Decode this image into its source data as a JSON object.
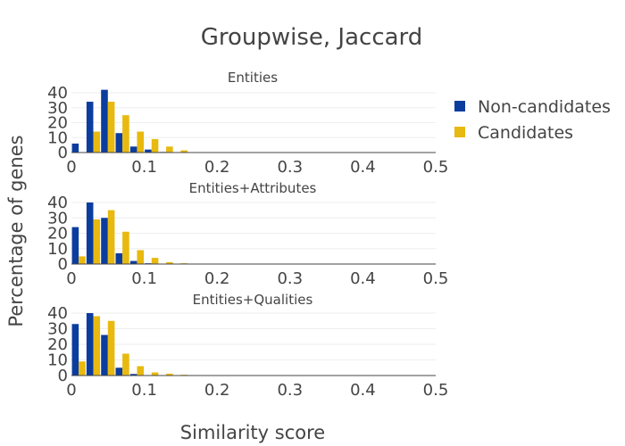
{
  "chart_data": {
    "type": "bar",
    "title": "Groupwise, Jaccard",
    "xlabel": "Similarity score",
    "ylabel": "Percentage of genes",
    "xlim": [
      0,
      0.5
    ],
    "ylim": [
      0,
      45
    ],
    "x_ticks": [
      "0",
      "0.1",
      "0.2",
      "0.3",
      "0.4",
      "0.5"
    ],
    "y_ticks": [
      "0",
      "10",
      "20",
      "30",
      "40"
    ],
    "bin_centers": [
      0.01,
      0.03,
      0.05,
      0.07,
      0.09,
      0.11,
      0.13,
      0.15,
      0.17,
      0.19
    ],
    "legend": [
      {
        "name": "Non-candidates",
        "color": "#0b3d9e"
      },
      {
        "name": "Candidates",
        "color": "#e8b90f"
      }
    ],
    "legend_position": "top-right",
    "panels": [
      {
        "title": "Entities",
        "series": [
          {
            "name": "Non-candidates",
            "values": [
              6,
              34,
              42,
              13,
              4,
              2,
              0.4,
              0,
              0,
              0
            ]
          },
          {
            "name": "Candidates",
            "values": [
              0,
              14,
              34,
              25,
              14,
              9,
              4,
              1.5,
              0.3,
              0
            ]
          }
        ]
      },
      {
        "title": "Entities+Attributes",
        "series": [
          {
            "name": "Non-candidates",
            "values": [
              24,
              40,
              30,
              7,
              2,
              0.5,
              0,
              0,
              0,
              0
            ]
          },
          {
            "name": "Candidates",
            "values": [
              5,
              29,
              35,
              21,
              9,
              4,
              1.2,
              0.5,
              0.2,
              0
            ]
          }
        ]
      },
      {
        "title": "Entities+Qualities",
        "series": [
          {
            "name": "Non-candidates",
            "values": [
              33,
              40,
              26,
              5,
              1,
              0.3,
              0,
              0,
              0,
              0
            ]
          },
          {
            "name": "Candidates",
            "values": [
              9,
              38,
              35,
              14,
              6,
              2,
              1.2,
              0.5,
              0.2,
              0
            ]
          }
        ]
      }
    ]
  }
}
